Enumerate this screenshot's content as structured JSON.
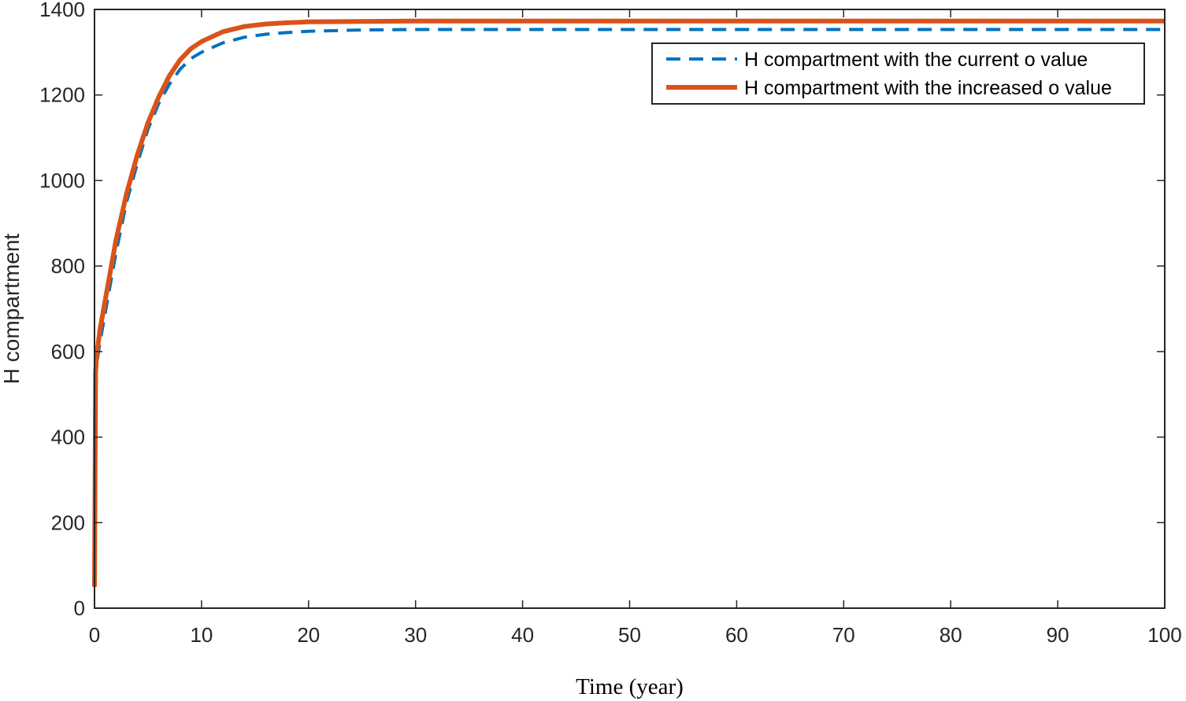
{
  "chart_data": {
    "type": "line",
    "title": "",
    "xlabel": "Time (year)",
    "ylabel": "H compartment",
    "xlim": [
      0,
      100
    ],
    "ylim": [
      0,
      1400
    ],
    "xticks": [
      0,
      10,
      20,
      30,
      40,
      50,
      60,
      70,
      80,
      90,
      100
    ],
    "yticks": [
      0,
      200,
      400,
      600,
      800,
      1000,
      1200,
      1400
    ],
    "grid": false,
    "legend_position": "top-right",
    "series": [
      {
        "name": "H compartment with the current o value",
        "color": "#0072BD",
        "style": "dashed",
        "x": [
          0,
          0.05,
          0.1,
          0.2,
          0.5,
          1,
          2,
          3,
          4,
          5,
          6,
          7,
          8,
          9,
          10,
          12,
          14,
          16,
          18,
          20,
          25,
          30,
          40,
          50,
          60,
          70,
          80,
          90,
          100
        ],
        "y": [
          50,
          300,
          530,
          570,
          620,
          690,
          830,
          950,
          1040,
          1120,
          1180,
          1225,
          1260,
          1285,
          1300,
          1322,
          1335,
          1342,
          1346,
          1349,
          1352,
          1353,
          1353,
          1353,
          1353,
          1353,
          1353,
          1353,
          1353
        ]
      },
      {
        "name": "H compartment with the increased o value",
        "color": "#D95319",
        "style": "solid",
        "x": [
          0,
          0.05,
          0.1,
          0.2,
          0.5,
          1,
          2,
          3,
          4,
          5,
          6,
          7,
          8,
          9,
          10,
          12,
          14,
          16,
          18,
          20,
          25,
          30,
          40,
          50,
          60,
          70,
          80,
          90,
          100
        ],
        "y": [
          50,
          300,
          550,
          590,
          650,
          720,
          860,
          970,
          1060,
          1135,
          1195,
          1245,
          1282,
          1308,
          1325,
          1348,
          1360,
          1366,
          1369,
          1371,
          1372,
          1373,
          1373,
          1373,
          1373,
          1373,
          1373,
          1373,
          1373
        ]
      }
    ]
  }
}
